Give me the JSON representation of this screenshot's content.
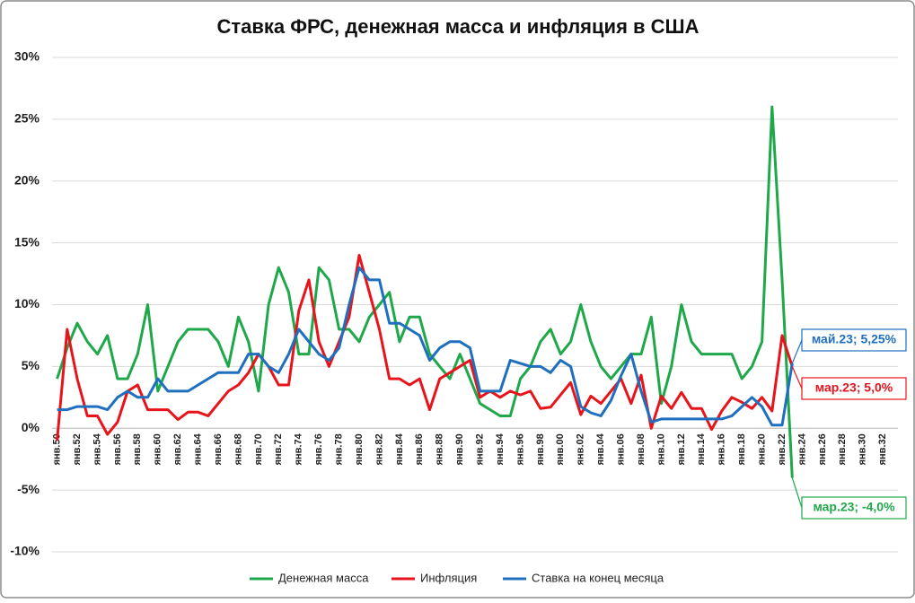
{
  "chart_data": {
    "type": "line",
    "title": "Ставка ФРС, денежная масса и инфляция в США",
    "categories": [
      "янв.50",
      null,
      "янв.52",
      null,
      "янв.54",
      null,
      "янв.56",
      null,
      "янв.58",
      null,
      "янв.60",
      null,
      "янв.62",
      null,
      "янв.64",
      null,
      "янв.66",
      null,
      "янв.68",
      null,
      "янв.70",
      null,
      "янв.72",
      null,
      "янв.74",
      null,
      "янв.76",
      null,
      "янв.78",
      null,
      "янв.80",
      null,
      "янв.82",
      null,
      "янв.84",
      null,
      "янв.86",
      null,
      "янв.88",
      null,
      "янв.90",
      null,
      "янв.92",
      null,
      "янв.94",
      null,
      "янв.96",
      null,
      "янв.98",
      null,
      "янв.00",
      null,
      "янв.02",
      null,
      "янв.04",
      null,
      "янв.06",
      null,
      "янв.08",
      null,
      "янв.10",
      null,
      "янв.12",
      null,
      "янв.14",
      null,
      "янв.16",
      null,
      "янв.18",
      null,
      "янв.20",
      null,
      "янв.22",
      null,
      "янв.24",
      null,
      "янв.26",
      null,
      "янв.28",
      null,
      "янв.30",
      null,
      "янв.32",
      null
    ],
    "series": [
      {
        "name": "Денежная масса",
        "color": "#1fa84a",
        "values": [
          4,
          6.5,
          8.5,
          7,
          6,
          7.5,
          4,
          4,
          6,
          10,
          3,
          5,
          7,
          8,
          8,
          8,
          7,
          5,
          9,
          7,
          3,
          10,
          13,
          11,
          6,
          6,
          13,
          12,
          8,
          8,
          7,
          9,
          10,
          11,
          7,
          9,
          9,
          6,
          5,
          4,
          6,
          4,
          2,
          1.5,
          1,
          1,
          4,
          5,
          7,
          8,
          6,
          7,
          10,
          7,
          5,
          4,
          5,
          6,
          6,
          9,
          2,
          5,
          10,
          7,
          6,
          6,
          6,
          6,
          4,
          5,
          7,
          26,
          12,
          -4,
          null,
          null,
          null,
          null,
          null,
          null,
          null,
          null,
          null,
          null
        ]
      },
      {
        "name": "Инфляция",
        "color": "#e8141c",
        "values": [
          -1,
          8,
          4,
          1,
          1,
          -0.5,
          0.5,
          3,
          3.5,
          1.5,
          1.5,
          1.5,
          0.7,
          1.3,
          1.3,
          1,
          2,
          3,
          3.5,
          4.5,
          6,
          5,
          3.5,
          3.5,
          9.5,
          12,
          7,
          5,
          7,
          9,
          14,
          11,
          8,
          4,
          4,
          3.5,
          4,
          1.5,
          4,
          4.5,
          5,
          5.5,
          2.5,
          3,
          2.5,
          3,
          2.7,
          3,
          1.6,
          1.7,
          2.7,
          3.7,
          1.1,
          2.6,
          2,
          3,
          4,
          2,
          4.3,
          0,
          2.6,
          1.6,
          2.9,
          1.6,
          1.6,
          -0.1,
          1.4,
          2.5,
          2.1,
          1.6,
          2.5,
          1.4,
          7.5,
          5,
          null,
          null,
          null,
          null,
          null,
          null,
          null,
          null,
          null,
          null
        ]
      },
      {
        "name": "Ставка на конец месяца",
        "color": "#1f6fbf",
        "values": [
          1.5,
          1.5,
          1.75,
          1.75,
          1.75,
          1.5,
          2.5,
          3,
          2.5,
          2.5,
          4,
          3,
          3,
          3,
          3.5,
          4,
          4.5,
          4.5,
          4.5,
          6,
          6,
          5,
          4.5,
          6,
          8,
          7,
          6,
          5.5,
          6.5,
          10,
          13,
          12,
          12,
          8.5,
          8.5,
          8,
          7.5,
          5.5,
          6.5,
          7,
          7,
          6.5,
          3,
          3,
          3,
          5.5,
          5.25,
          5,
          5,
          4.5,
          5.5,
          5,
          1.75,
          1.25,
          1,
          2.25,
          4.25,
          6,
          3,
          0.5,
          0.75,
          0.75,
          0.75,
          0.75,
          0.75,
          0.75,
          0.75,
          1,
          1.75,
          2.5,
          1.75,
          0.25,
          0.25,
          5.25,
          null,
          null,
          null,
          null,
          null,
          null,
          null,
          null,
          null,
          null
        ]
      }
    ],
    "annotations": [
      "мар.23; -4,0%",
      "мар.23; 5,0%",
      "май.23; 5,25%"
    ],
    "ylim": [
      -10,
      30
    ],
    "yticks": [
      {
        "value": -10,
        "label": "-10%"
      },
      {
        "value": -5,
        "label": "-5%"
      },
      {
        "value": 0,
        "label": "0%"
      },
      {
        "value": 5,
        "label": "5%"
      },
      {
        "value": 10,
        "label": "10%"
      },
      {
        "value": 15,
        "label": "15%"
      },
      {
        "value": 20,
        "label": "20%"
      },
      {
        "value": 25,
        "label": "25%"
      },
      {
        "value": 30,
        "label": "30%"
      }
    ],
    "grid": true
  }
}
